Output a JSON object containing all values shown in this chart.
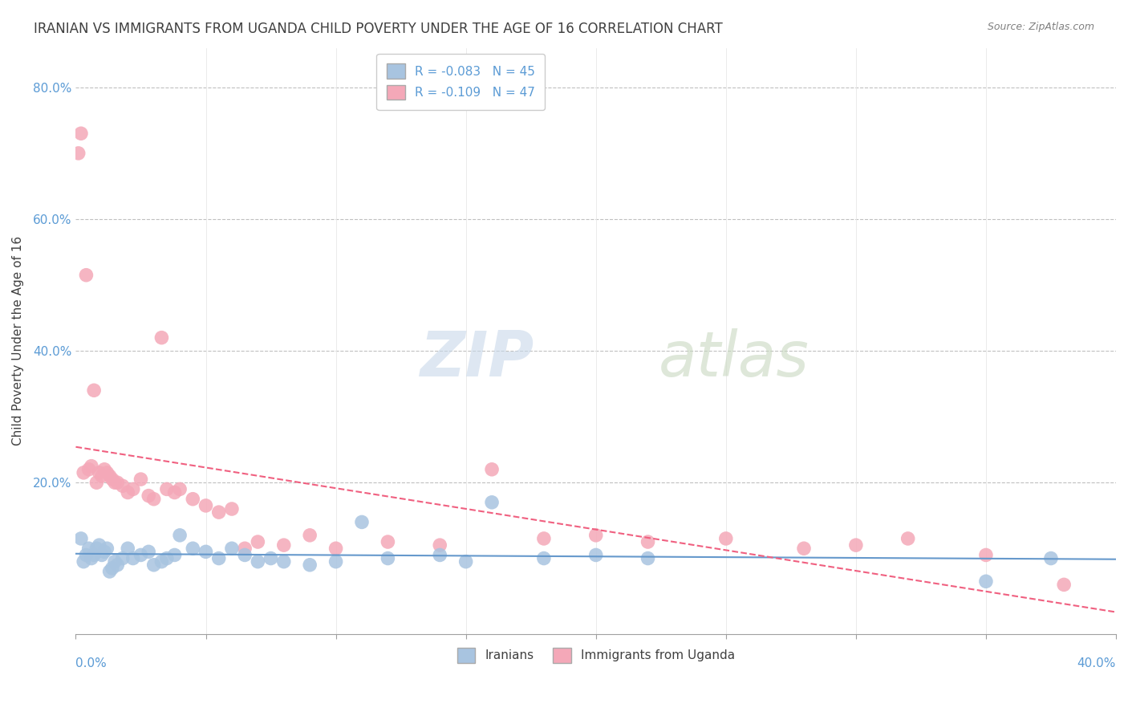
{
  "title": "IRANIAN VS IMMIGRANTS FROM UGANDA CHILD POVERTY UNDER THE AGE OF 16 CORRELATION CHART",
  "source": "Source: ZipAtlas.com",
  "ylabel": "Child Poverty Under the Age of 16",
  "legend_iranian": "Iranians",
  "legend_uganda": "Immigrants from Uganda",
  "r_iranian": -0.083,
  "n_iranian": 45,
  "r_uganda": -0.109,
  "n_uganda": 47,
  "color_iranian": "#a8c4e0",
  "color_uganda": "#f4a8b8",
  "color_iranian_line": "#6699cc",
  "color_uganda_line": "#f06080",
  "x_lim": [
    0.0,
    0.4
  ],
  "y_lim": [
    -0.03,
    0.86
  ],
  "iranians_x": [
    0.002,
    0.003,
    0.004,
    0.005,
    0.006,
    0.007,
    0.008,
    0.009,
    0.01,
    0.011,
    0.012,
    0.013,
    0.014,
    0.015,
    0.016,
    0.018,
    0.02,
    0.022,
    0.025,
    0.028,
    0.03,
    0.033,
    0.035,
    0.038,
    0.04,
    0.045,
    0.05,
    0.055,
    0.06,
    0.065,
    0.07,
    0.075,
    0.08,
    0.09,
    0.1,
    0.11,
    0.12,
    0.14,
    0.15,
    0.16,
    0.18,
    0.2,
    0.22,
    0.35,
    0.375
  ],
  "iranians_y": [
    0.115,
    0.08,
    0.09,
    0.1,
    0.085,
    0.09,
    0.1,
    0.105,
    0.09,
    0.095,
    0.1,
    0.065,
    0.07,
    0.08,
    0.075,
    0.085,
    0.1,
    0.085,
    0.09,
    0.095,
    0.075,
    0.08,
    0.085,
    0.09,
    0.12,
    0.1,
    0.095,
    0.085,
    0.1,
    0.09,
    0.08,
    0.085,
    0.08,
    0.075,
    0.08,
    0.14,
    0.085,
    0.09,
    0.08,
    0.17,
    0.085,
    0.09,
    0.085,
    0.05,
    0.085
  ],
  "uganda_x": [
    0.001,
    0.002,
    0.003,
    0.004,
    0.005,
    0.006,
    0.007,
    0.008,
    0.009,
    0.01,
    0.011,
    0.012,
    0.013,
    0.014,
    0.015,
    0.016,
    0.018,
    0.02,
    0.022,
    0.025,
    0.028,
    0.03,
    0.033,
    0.035,
    0.038,
    0.04,
    0.045,
    0.05,
    0.055,
    0.06,
    0.065,
    0.07,
    0.08,
    0.09,
    0.1,
    0.12,
    0.14,
    0.16,
    0.18,
    0.2,
    0.22,
    0.25,
    0.28,
    0.3,
    0.32,
    0.35,
    0.38
  ],
  "uganda_y": [
    0.7,
    0.73,
    0.215,
    0.515,
    0.22,
    0.225,
    0.34,
    0.2,
    0.215,
    0.21,
    0.22,
    0.215,
    0.21,
    0.205,
    0.2,
    0.2,
    0.195,
    0.185,
    0.19,
    0.205,
    0.18,
    0.175,
    0.42,
    0.19,
    0.185,
    0.19,
    0.175,
    0.165,
    0.155,
    0.16,
    0.1,
    0.11,
    0.105,
    0.12,
    0.1,
    0.11,
    0.105,
    0.22,
    0.115,
    0.12,
    0.11,
    0.115,
    0.1,
    0.105,
    0.115,
    0.09,
    0.045
  ]
}
